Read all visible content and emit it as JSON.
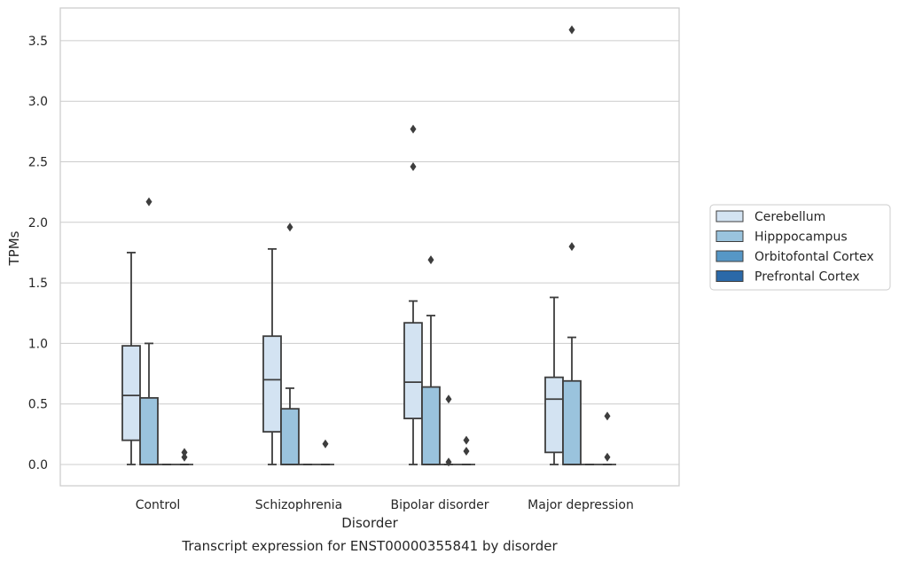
{
  "chart_data": {
    "type": "box",
    "title": "Transcript expression for ENST00000355841 by disorder",
    "xlabel": "Disorder",
    "ylabel": "TPMs",
    "ylim": [
      -0.175,
      3.75
    ],
    "yticks": [
      "0.0",
      "0.5",
      "1.0",
      "1.5",
      "2.0",
      "2.5",
      "3.0",
      "3.5"
    ],
    "grid": true,
    "legend_position": "right",
    "categories": [
      "Control",
      "Schizophrenia",
      "Bipolar disorder",
      "Major depression"
    ],
    "series": [
      {
        "name": "Cerebellum",
        "color": "#d3e3f2",
        "boxes": [
          {
            "min": 0.0,
            "q1": 0.2,
            "median": 0.57,
            "q3": 0.98,
            "max": 1.75,
            "outliers": []
          },
          {
            "min": 0.0,
            "q1": 0.27,
            "median": 0.7,
            "q3": 1.06,
            "max": 1.78,
            "outliers": []
          },
          {
            "min": 0.0,
            "q1": 0.38,
            "median": 0.68,
            "q3": 1.17,
            "max": 1.35,
            "outliers": [
              2.46,
              2.77
            ]
          },
          {
            "min": 0.0,
            "q1": 0.1,
            "median": 0.54,
            "q3": 0.72,
            "max": 1.38,
            "outliers": []
          }
        ]
      },
      {
        "name": "Hipppocampus",
        "color": "#9ac3dd",
        "boxes": [
          {
            "min": 0.0,
            "q1": 0.0,
            "median": 0.0,
            "q3": 0.55,
            "max": 1.0,
            "outliers": [
              2.17
            ]
          },
          {
            "min": 0.0,
            "q1": 0.0,
            "median": 0.0,
            "q3": 0.46,
            "max": 0.63,
            "outliers": [
              1.96
            ]
          },
          {
            "min": 0.0,
            "q1": 0.0,
            "median": 0.0,
            "q3": 0.64,
            "max": 1.23,
            "outliers": [
              1.69
            ]
          },
          {
            "min": 0.0,
            "q1": 0.0,
            "median": 0.0,
            "q3": 0.69,
            "max": 1.05,
            "outliers": [
              1.8,
              3.59
            ]
          }
        ]
      },
      {
        "name": "Orbitofontal Cortex",
        "color": "#5697c6",
        "boxes": [
          {
            "min": 0.0,
            "q1": 0.0,
            "median": 0.0,
            "q3": 0.0,
            "max": 0.0,
            "outliers": []
          },
          {
            "min": 0.0,
            "q1": 0.0,
            "median": 0.0,
            "q3": 0.0,
            "max": 0.0,
            "outliers": []
          },
          {
            "min": 0.0,
            "q1": 0.0,
            "median": 0.0,
            "q3": 0.0,
            "max": 0.0,
            "outliers": [
              0.54,
              0.02
            ]
          },
          {
            "min": 0.0,
            "q1": 0.0,
            "median": 0.0,
            "q3": 0.0,
            "max": 0.0,
            "outliers": []
          }
        ]
      },
      {
        "name": "Prefrontal Cortex",
        "color": "#2b69a8",
        "boxes": [
          {
            "min": 0.0,
            "q1": 0.0,
            "median": 0.0,
            "q3": 0.0,
            "max": 0.0,
            "outliers": [
              0.1,
              0.06
            ]
          },
          {
            "min": 0.0,
            "q1": 0.0,
            "median": 0.0,
            "q3": 0.0,
            "max": 0.0,
            "outliers": [
              0.17
            ]
          },
          {
            "min": 0.0,
            "q1": 0.0,
            "median": 0.0,
            "q3": 0.0,
            "max": 0.0,
            "outliers": [
              0.2,
              0.11
            ]
          },
          {
            "min": 0.0,
            "q1": 0.0,
            "median": 0.0,
            "q3": 0.0,
            "max": 0.0,
            "outliers": [
              0.4,
              0.06
            ]
          }
        ]
      }
    ]
  }
}
